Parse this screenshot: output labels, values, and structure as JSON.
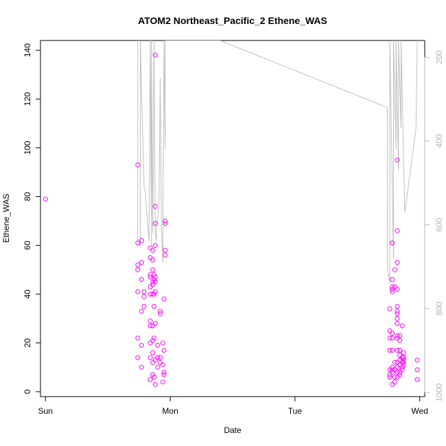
{
  "chart_data": {
    "type": "scatter",
    "title": "ATOM2 Northeast_Pacific_2 Ethene_WAS",
    "xlabel": "Date",
    "ylabel": "Ethene_WAS",
    "x_ticks": [
      "Sun",
      "Mon",
      "Tue",
      "Wed"
    ],
    "x_range_days": [
      -0.04,
      3.04
    ],
    "ylim": [
      -2,
      144
    ],
    "y_ticks": [
      0,
      20,
      40,
      60,
      80,
      100,
      120,
      140
    ],
    "y2_ticks": [
      200,
      400,
      600,
      800,
      1000
    ],
    "y2_range_reversed": [
      1010,
      160
    ],
    "grid": false,
    "point_color": "#ff00ff",
    "line_color": "#bebebe",
    "series": [
      {
        "points": [
          [
            0.0,
            79
          ],
          [
            0.74,
            93
          ],
          [
            0.74,
            61
          ],
          [
            0.74,
            52
          ],
          [
            0.74,
            50
          ],
          [
            0.74,
            41
          ],
          [
            0.74,
            22
          ],
          [
            0.74,
            14
          ],
          [
            0.77,
            62
          ],
          [
            0.77,
            53
          ],
          [
            0.77,
            46
          ],
          [
            0.77,
            33
          ],
          [
            0.77,
            19
          ],
          [
            0.77,
            10
          ],
          [
            0.79,
            41
          ],
          [
            0.79,
            39
          ],
          [
            0.79,
            35
          ],
          [
            0.84,
            59
          ],
          [
            0.84,
            55
          ],
          [
            0.84,
            48
          ],
          [
            0.84,
            47
          ],
          [
            0.84,
            43
          ],
          [
            0.84,
            40
          ],
          [
            0.84,
            29
          ],
          [
            0.84,
            27
          ],
          [
            0.84,
            20
          ],
          [
            0.84,
            14
          ],
          [
            0.84,
            5
          ],
          [
            0.86,
            58
          ],
          [
            0.86,
            54
          ],
          [
            0.86,
            50
          ],
          [
            0.86,
            45
          ],
          [
            0.86,
            44
          ],
          [
            0.86,
            40
          ],
          [
            0.86,
            27
          ],
          [
            0.86,
            21
          ],
          [
            0.86,
            16
          ],
          [
            0.86,
            12
          ],
          [
            0.86,
            7
          ],
          [
            0.87,
            48
          ],
          [
            0.87,
            46
          ],
          [
            0.87,
            40
          ],
          [
            0.87,
            35
          ],
          [
            0.87,
            22
          ],
          [
            0.87,
            6
          ],
          [
            0.88,
            138
          ],
          [
            0.88,
            76
          ],
          [
            0.88,
            69
          ],
          [
            0.88,
            60
          ],
          [
            0.88,
            47
          ],
          [
            0.88,
            45
          ],
          [
            0.88,
            41
          ],
          [
            0.88,
            28
          ],
          [
            0.88,
            13
          ],
          [
            0.88,
            3
          ],
          [
            0.9,
            19
          ],
          [
            0.9,
            14
          ],
          [
            0.9,
            10
          ],
          [
            0.92,
            33
          ],
          [
            0.92,
            32
          ],
          [
            0.92,
            14
          ],
          [
            0.92,
            12
          ],
          [
            0.94,
            20
          ],
          [
            0.94,
            11
          ],
          [
            0.94,
            4
          ],
          [
            0.95,
            38
          ],
          [
            0.95,
            17
          ],
          [
            0.95,
            8
          ],
          [
            0.95,
            7
          ],
          [
            0.96,
            70
          ],
          [
            0.96,
            69
          ],
          [
            0.96,
            58
          ],
          [
            0.96,
            56
          ],
          [
            2.76,
            34
          ],
          [
            2.76,
            25
          ],
          [
            2.76,
            22
          ],
          [
            2.76,
            17
          ],
          [
            2.76,
            9
          ],
          [
            2.76,
            7
          ],
          [
            2.76,
            6
          ],
          [
            2.78,
            61
          ],
          [
            2.78,
            46
          ],
          [
            2.78,
            43
          ],
          [
            2.78,
            42
          ],
          [
            2.78,
            41
          ],
          [
            2.78,
            24
          ],
          [
            2.78,
            22
          ],
          [
            2.78,
            17
          ],
          [
            2.78,
            10
          ],
          [
            2.78,
            9
          ],
          [
            2.78,
            8
          ],
          [
            2.78,
            3
          ],
          [
            2.8,
            50
          ],
          [
            2.8,
            43
          ],
          [
            2.8,
            12
          ],
          [
            2.8,
            9
          ],
          [
            2.8,
            6
          ],
          [
            2.8,
            4
          ],
          [
            2.82,
            95
          ],
          [
            2.82,
            66
          ],
          [
            2.82,
            53
          ],
          [
            2.82,
            42
          ],
          [
            2.82,
            35
          ],
          [
            2.82,
            33
          ],
          [
            2.82,
            32
          ],
          [
            2.82,
            30
          ],
          [
            2.82,
            28
          ],
          [
            2.82,
            23
          ],
          [
            2.82,
            22
          ],
          [
            2.82,
            17
          ],
          [
            2.82,
            12
          ],
          [
            2.82,
            10
          ],
          [
            2.82,
            8
          ],
          [
            2.82,
            6
          ],
          [
            2.84,
            23
          ],
          [
            2.84,
            21
          ],
          [
            2.84,
            17
          ],
          [
            2.84,
            15
          ],
          [
            2.84,
            13
          ],
          [
            2.84,
            11
          ],
          [
            2.84,
            8
          ],
          [
            2.84,
            7
          ],
          [
            2.86,
            27
          ],
          [
            2.86,
            14
          ],
          [
            2.86,
            12
          ],
          [
            2.86,
            10
          ],
          [
            2.86,
            9
          ],
          [
            2.87,
            16
          ],
          [
            2.87,
            14
          ],
          [
            2.87,
            13
          ],
          [
            2.87,
            12
          ],
          [
            2.87,
            11
          ],
          [
            2.98,
            13
          ],
          [
            2.98,
            9
          ],
          [
            2.98,
            5
          ]
        ]
      }
    ],
    "secondary_line": [
      [
        0.74,
        160
      ],
      [
        0.74,
        640
      ],
      [
        0.76,
        650
      ],
      [
        0.76,
        160
      ],
      [
        0.79,
        510
      ],
      [
        0.8,
        520
      ],
      [
        0.83,
        640
      ],
      [
        0.84,
        160
      ],
      [
        0.85,
        650
      ],
      [
        0.85,
        160
      ],
      [
        0.86,
        620
      ],
      [
        0.87,
        160
      ],
      [
        0.88,
        620
      ],
      [
        0.89,
        640
      ],
      [
        0.89,
        600
      ],
      [
        0.91,
        560
      ],
      [
        0.92,
        250
      ],
      [
        0.93,
        610
      ],
      [
        0.94,
        690
      ],
      [
        0.95,
        160
      ],
      [
        0.96,
        420
      ],
      [
        0.96,
        160
      ],
      [
        1.4,
        160
      ],
      [
        2.74,
        320
      ],
      [
        2.74,
        700
      ],
      [
        2.76,
        740
      ],
      [
        2.76,
        160
      ],
      [
        2.79,
        680
      ],
      [
        2.79,
        160
      ],
      [
        2.81,
        420
      ],
      [
        2.81,
        160
      ],
      [
        2.83,
        470
      ],
      [
        2.83,
        160
      ],
      [
        2.85,
        370
      ],
      [
        2.85,
        160
      ],
      [
        2.88,
        570
      ],
      [
        2.89,
        550
      ],
      [
        2.97,
        370
      ],
      [
        2.98,
        160
      ]
    ]
  }
}
